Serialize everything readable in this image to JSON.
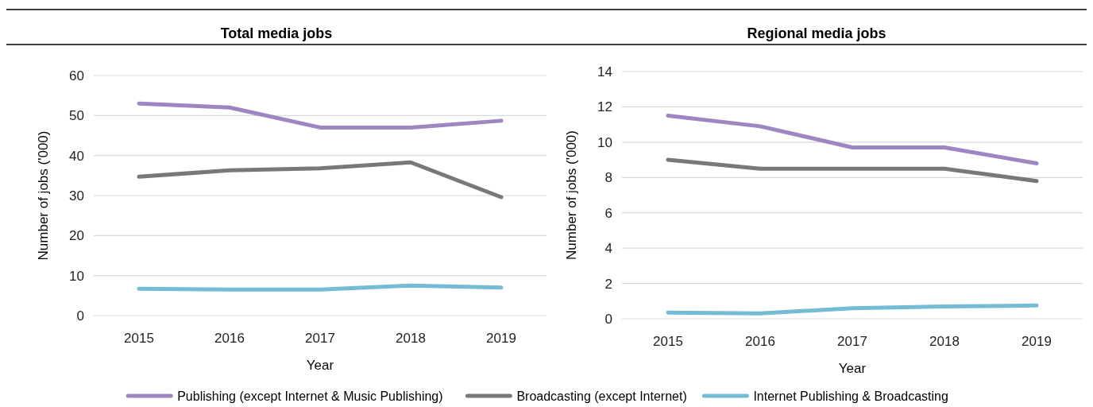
{
  "chart_data": [
    {
      "type": "line",
      "title": "Total media jobs",
      "xlabel": "Year",
      "ylabel": "Number of jobs ('000)",
      "categories": [
        "2015",
        "2016",
        "2017",
        "2018",
        "2019"
      ],
      "ylim": [
        0,
        60
      ],
      "yticks": [
        0,
        10,
        20,
        30,
        40,
        50,
        60
      ],
      "grid": "y",
      "legend": "bottom",
      "series": [
        {
          "name": "Publishing (except Internet & Music Publishing)",
          "color": "#9e86c3",
          "values": [
            53,
            52,
            47,
            47,
            48.7
          ]
        },
        {
          "name": "Broadcasting (except Internet)",
          "color": "#787878",
          "values": [
            34.7,
            36.3,
            36.8,
            38.3,
            29.6
          ]
        },
        {
          "name": "Internet Publishing & Broadcasting",
          "color": "#74bcd6",
          "values": [
            6.7,
            6.5,
            6.5,
            7.5,
            7.0
          ]
        }
      ]
    },
    {
      "type": "line",
      "title": "Regional media jobs",
      "xlabel": "Year",
      "ylabel": "Number of jobs ('000)",
      "categories": [
        "2015",
        "2016",
        "2017",
        "2018",
        "2019"
      ],
      "ylim": [
        0,
        14
      ],
      "yticks": [
        0,
        2,
        4,
        6,
        8,
        10,
        12,
        14
      ],
      "grid": "y",
      "legend": "bottom",
      "series": [
        {
          "name": "Publishing (except Internet & Music Publishing)",
          "color": "#9e86c3",
          "values": [
            11.5,
            10.9,
            9.7,
            9.7,
            8.8
          ]
        },
        {
          "name": "Broadcasting (except Internet)",
          "color": "#787878",
          "values": [
            9.0,
            8.5,
            8.5,
            8.5,
            7.8
          ]
        },
        {
          "name": "Internet Publishing & Broadcasting",
          "color": "#74bcd6",
          "values": [
            0.35,
            0.3,
            0.6,
            0.7,
            0.75
          ]
        }
      ]
    }
  ]
}
